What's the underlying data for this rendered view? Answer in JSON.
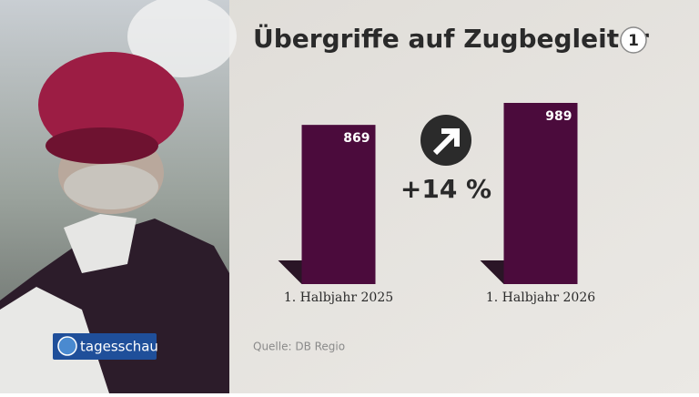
{
  "chart_data": {
    "type": "bar",
    "title": "Übergriffe auf Zugbegleiter",
    "categories": [
      "1. Halbjahr 2025",
      "1. Halbjahr 2026"
    ],
    "values": [
      869,
      989
    ],
    "color": "#4b0b3c",
    "annotation": "+14 %",
    "source": "Quelle: DB Regio"
  },
  "branding": {
    "program": "tagesschau",
    "channel": "1"
  }
}
